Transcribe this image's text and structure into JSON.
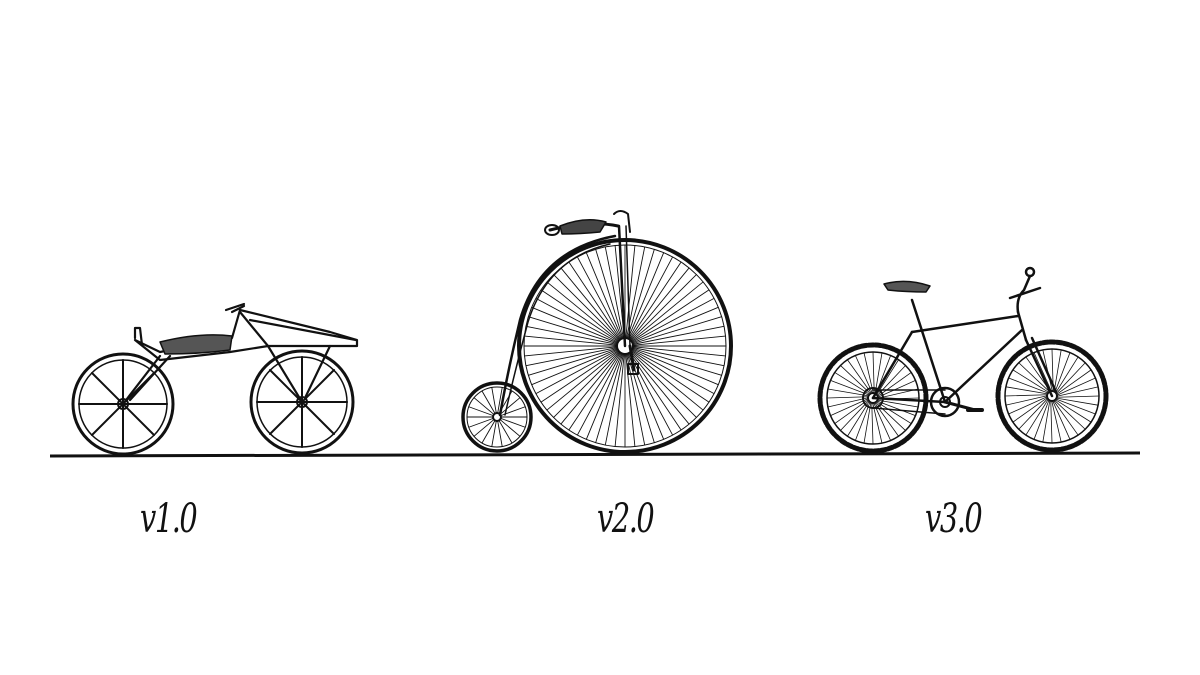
{
  "labels": {
    "v1": "v1.0",
    "v2": "v2.0",
    "v3": "v3.0"
  },
  "colors": {
    "ink": "#111111",
    "background": "#ffffff"
  },
  "illustrations": [
    "draisine-bicycle",
    "penny-farthing-bicycle",
    "mountain-bicycle"
  ]
}
